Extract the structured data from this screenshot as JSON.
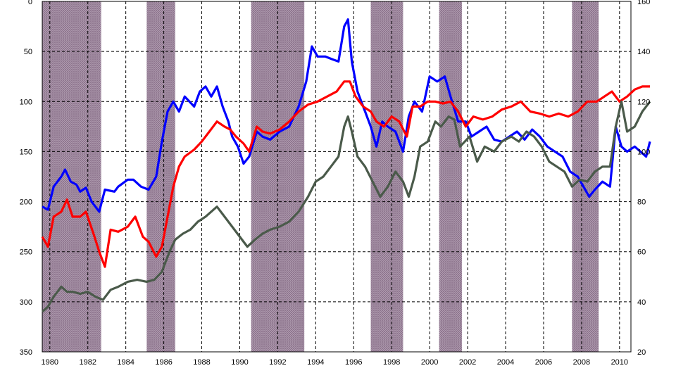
{
  "chart_data": {
    "type": "line",
    "title": "",
    "xlabel": "",
    "ylabel": "",
    "xlim": [
      1980,
      2011
    ],
    "x_ticks": [
      "1980",
      "1982",
      "1984",
      "1986",
      "1988",
      "1990",
      "1992",
      "1994",
      "1996",
      "1998",
      "2000",
      "2002",
      "2004",
      "2006",
      "2008",
      "2010"
    ],
    "y_left": {
      "lim": [
        350,
        0
      ],
      "inverted": true,
      "ticks": [
        "0",
        "50",
        "100",
        "150",
        "200",
        "250",
        "300",
        "350"
      ]
    },
    "y_right": {
      "lim": [
        20,
        160
      ],
      "ticks": [
        "160",
        "140",
        "120",
        "100",
        "80",
        "60",
        "40",
        "20"
      ]
    },
    "grid": "dashed",
    "legend": "none",
    "shaded_periods": [
      [
        1980,
        1983.1
      ],
      [
        1985.5,
        1987.0
      ],
      [
        1991.0,
        1993.8
      ],
      [
        1997.3,
        1999.0
      ],
      [
        2000.9,
        2002.1
      ],
      [
        2007.9,
        2009.3
      ]
    ],
    "series": [
      {
        "color": "#0000ff",
        "axis": "left",
        "points": [
          [
            1980,
            205
          ],
          [
            1980.3,
            208
          ],
          [
            1980.6,
            185
          ],
          [
            1981,
            175
          ],
          [
            1981.2,
            168
          ],
          [
            1981.5,
            180
          ],
          [
            1981.8,
            183
          ],
          [
            1982,
            190
          ],
          [
            1982.3,
            186
          ],
          [
            1982.6,
            200
          ],
          [
            1983,
            210
          ],
          [
            1983.3,
            188
          ],
          [
            1983.8,
            190
          ],
          [
            1984,
            185
          ],
          [
            1984.5,
            178
          ],
          [
            1984.8,
            178
          ],
          [
            1985.2,
            185
          ],
          [
            1985.6,
            188
          ],
          [
            1986,
            175
          ],
          [
            1986.3,
            140
          ],
          [
            1986.6,
            110
          ],
          [
            1986.9,
            100
          ],
          [
            1987.2,
            110
          ],
          [
            1987.5,
            95
          ],
          [
            1988,
            105
          ],
          [
            1988.3,
            90
          ],
          [
            1988.6,
            85
          ],
          [
            1988.9,
            95
          ],
          [
            1989.2,
            85
          ],
          [
            1989.5,
            105
          ],
          [
            1989.8,
            120
          ],
          [
            1990,
            135
          ],
          [
            1990.3,
            145
          ],
          [
            1990.6,
            162
          ],
          [
            1990.9,
            155
          ],
          [
            1991.3,
            130
          ],
          [
            1991.6,
            135
          ],
          [
            1992,
            138
          ],
          [
            1992.5,
            130
          ],
          [
            1993,
            125
          ],
          [
            1993.5,
            105
          ],
          [
            1993.9,
            80
          ],
          [
            1994.2,
            45
          ],
          [
            1994.5,
            55
          ],
          [
            1994.9,
            55
          ],
          [
            1995.3,
            58
          ],
          [
            1995.6,
            60
          ],
          [
            1995.9,
            25
          ],
          [
            1996.1,
            18
          ],
          [
            1996.3,
            60
          ],
          [
            1996.6,
            90
          ],
          [
            1997,
            110
          ],
          [
            1997.3,
            125
          ],
          [
            1997.6,
            145
          ],
          [
            1997.9,
            120
          ],
          [
            1998.2,
            125
          ],
          [
            1998.6,
            130
          ],
          [
            1999,
            150
          ],
          [
            1999.3,
            115
          ],
          [
            1999.6,
            100
          ],
          [
            2000,
            110
          ],
          [
            2000.4,
            75
          ],
          [
            2000.8,
            80
          ],
          [
            2001.2,
            75
          ],
          [
            2001.5,
            95
          ],
          [
            2001.9,
            120
          ],
          [
            2002.3,
            120
          ],
          [
            2002.6,
            135
          ],
          [
            2003,
            130
          ],
          [
            2003.4,
            125
          ],
          [
            2003.8,
            138
          ],
          [
            2004.2,
            140
          ],
          [
            2004.6,
            135
          ],
          [
            2005,
            130
          ],
          [
            2005.4,
            138
          ],
          [
            2005.8,
            128
          ],
          [
            2006.2,
            135
          ],
          [
            2006.6,
            145
          ],
          [
            2007,
            150
          ],
          [
            2007.4,
            155
          ],
          [
            2007.8,
            170
          ],
          [
            2008.2,
            175
          ],
          [
            2008.5,
            185
          ],
          [
            2008.8,
            195
          ],
          [
            2009.1,
            188
          ],
          [
            2009.5,
            180
          ],
          [
            2009.9,
            185
          ],
          [
            2010.2,
            125
          ],
          [
            2010.5,
            145
          ],
          [
            2010.8,
            150
          ],
          [
            2011.2,
            145
          ],
          [
            2011.5,
            150
          ],
          [
            2011.8,
            155
          ],
          [
            2012,
            140
          ]
        ]
      },
      {
        "color": "#ff0000",
        "axis": "left",
        "points": [
          [
            1980,
            235
          ],
          [
            1980.3,
            245
          ],
          [
            1980.6,
            215
          ],
          [
            1981,
            210
          ],
          [
            1981.3,
            198
          ],
          [
            1981.6,
            215
          ],
          [
            1982,
            215
          ],
          [
            1982.3,
            210
          ],
          [
            1982.7,
            232
          ],
          [
            1983,
            250
          ],
          [
            1983.3,
            265
          ],
          [
            1983.6,
            228
          ],
          [
            1984,
            230
          ],
          [
            1984.5,
            225
          ],
          [
            1984.9,
            215
          ],
          [
            1985.3,
            235
          ],
          [
            1985.6,
            240
          ],
          [
            1986,
            255
          ],
          [
            1986.3,
            245
          ],
          [
            1986.6,
            215
          ],
          [
            1986.9,
            185
          ],
          [
            1987.2,
            165
          ],
          [
            1987.5,
            155
          ],
          [
            1988,
            148
          ],
          [
            1988.4,
            140
          ],
          [
            1988.8,
            130
          ],
          [
            1989.2,
            120
          ],
          [
            1989.6,
            125
          ],
          [
            1989.9,
            128
          ],
          [
            1990.2,
            135
          ],
          [
            1990.6,
            142
          ],
          [
            1990.9,
            150
          ],
          [
            1991.3,
            125
          ],
          [
            1991.6,
            130
          ],
          [
            1992,
            132
          ],
          [
            1992.5,
            128
          ],
          [
            1993,
            120
          ],
          [
            1993.5,
            110
          ],
          [
            1994,
            103
          ],
          [
            1994.5,
            100
          ],
          [
            1995,
            95
          ],
          [
            1995.5,
            90
          ],
          [
            1995.9,
            80
          ],
          [
            1996.2,
            80
          ],
          [
            1996.5,
            95
          ],
          [
            1996.9,
            105
          ],
          [
            1997.3,
            110
          ],
          [
            1997.6,
            120
          ],
          [
            1998,
            125
          ],
          [
            1998.4,
            115
          ],
          [
            1998.8,
            120
          ],
          [
            1999.2,
            135
          ],
          [
            1999.5,
            105
          ],
          [
            1999.9,
            105
          ],
          [
            2000.3,
            100
          ],
          [
            2000.7,
            100
          ],
          [
            2001.1,
            102
          ],
          [
            2001.5,
            100
          ],
          [
            2001.9,
            110
          ],
          [
            2002.3,
            125
          ],
          [
            2002.7,
            115
          ],
          [
            2003.2,
            118
          ],
          [
            2003.7,
            115
          ],
          [
            2004.2,
            108
          ],
          [
            2004.7,
            105
          ],
          [
            2005.2,
            100
          ],
          [
            2005.7,
            110
          ],
          [
            2006.2,
            112
          ],
          [
            2006.7,
            115
          ],
          [
            2007.2,
            112
          ],
          [
            2007.7,
            115
          ],
          [
            2008.2,
            110
          ],
          [
            2008.7,
            100
          ],
          [
            2009.2,
            100
          ],
          [
            2009.6,
            95
          ],
          [
            2010,
            90
          ],
          [
            2010.4,
            100
          ],
          [
            2010.8,
            95
          ],
          [
            2011.2,
            88
          ],
          [
            2011.6,
            85
          ],
          [
            2012,
            85
          ]
        ]
      },
      {
        "color": "#4a5a4a",
        "axis": "left",
        "points": [
          [
            1980,
            310
          ],
          [
            1980.3,
            305
          ],
          [
            1980.6,
            295
          ],
          [
            1981,
            285
          ],
          [
            1981.3,
            290
          ],
          [
            1981.6,
            290
          ],
          [
            1982,
            292
          ],
          [
            1982.4,
            290
          ],
          [
            1982.8,
            295
          ],
          [
            1983.2,
            298
          ],
          [
            1983.6,
            288
          ],
          [
            1984,
            285
          ],
          [
            1984.5,
            280
          ],
          [
            1985,
            278
          ],
          [
            1985.5,
            280
          ],
          [
            1985.9,
            278
          ],
          [
            1986.3,
            270
          ],
          [
            1986.7,
            250
          ],
          [
            1987,
            238
          ],
          [
            1987.4,
            232
          ],
          [
            1987.8,
            228
          ],
          [
            1988.2,
            220
          ],
          [
            1988.6,
            215
          ],
          [
            1988.9,
            210
          ],
          [
            1989.2,
            205
          ],
          [
            1989.6,
            215
          ],
          [
            1990,
            225
          ],
          [
            1990.4,
            235
          ],
          [
            1990.8,
            245
          ],
          [
            1991.2,
            238
          ],
          [
            1991.6,
            232
          ],
          [
            1992,
            228
          ],
          [
            1992.5,
            225
          ],
          [
            1993,
            220
          ],
          [
            1993.5,
            210
          ],
          [
            1994,
            195
          ],
          [
            1994.4,
            180
          ],
          [
            1994.8,
            175
          ],
          [
            1995.2,
            165
          ],
          [
            1995.6,
            155
          ],
          [
            1995.9,
            125
          ],
          [
            1996.1,
            115
          ],
          [
            1996.3,
            130
          ],
          [
            1996.6,
            155
          ],
          [
            1997,
            165
          ],
          [
            1997.4,
            180
          ],
          [
            1997.8,
            195
          ],
          [
            1998.2,
            185
          ],
          [
            1998.6,
            170
          ],
          [
            1999,
            180
          ],
          [
            1999.3,
            195
          ],
          [
            1999.6,
            175
          ],
          [
            1999.9,
            145
          ],
          [
            2000.3,
            140
          ],
          [
            2000.7,
            120
          ],
          [
            2001,
            125
          ],
          [
            2001.4,
            115
          ],
          [
            2001.7,
            118
          ],
          [
            2002,
            145
          ],
          [
            2002.5,
            135
          ],
          [
            2002.9,
            160
          ],
          [
            2003.3,
            145
          ],
          [
            2003.8,
            150
          ],
          [
            2004.2,
            140
          ],
          [
            2004.7,
            135
          ],
          [
            2005.1,
            140
          ],
          [
            2005.5,
            130
          ],
          [
            2005.9,
            135
          ],
          [
            2006.3,
            145
          ],
          [
            2006.7,
            160
          ],
          [
            2007.1,
            165
          ],
          [
            2007.5,
            170
          ],
          [
            2007.9,
            185
          ],
          [
            2008.3,
            178
          ],
          [
            2008.7,
            180
          ],
          [
            2009.1,
            170
          ],
          [
            2009.5,
            165
          ],
          [
            2009.9,
            165
          ],
          [
            2010.2,
            125
          ],
          [
            2010.5,
            100
          ],
          [
            2010.8,
            130
          ],
          [
            2011.2,
            125
          ],
          [
            2011.6,
            110
          ],
          [
            2012,
            100
          ]
        ]
      }
    ]
  }
}
